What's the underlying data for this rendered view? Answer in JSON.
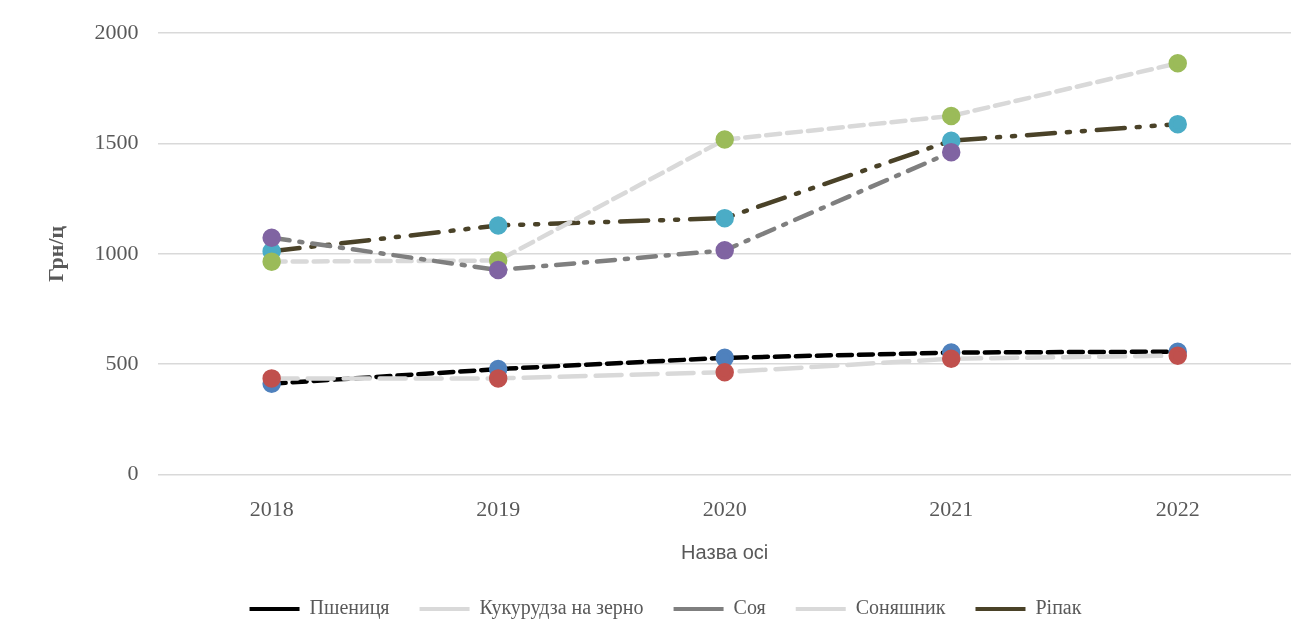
{
  "chart_data": {
    "type": "line",
    "xlabel": "Назва осі",
    "ylabel": "Грн/ц",
    "categories": [
      "2018",
      "2019",
      "2020",
      "2021",
      "2022"
    ],
    "ylim": [
      0,
      2000
    ],
    "yticks": [
      0,
      500,
      1000,
      1500,
      2000
    ],
    "grid": "y",
    "legend": "bottom",
    "marker": "circle",
    "series": [
      {
        "name": "Пшениця",
        "color": "#4f81bd",
        "line_style": "dashed",
        "values": [
          412,
          478,
          529,
          553,
          557
        ]
      },
      {
        "name": "Кукурудза на зерно",
        "color": "#c0504d",
        "line_style": "long_dash",
        "values": [
          436,
          436,
          464,
          525,
          539
        ]
      },
      {
        "name": "Соя",
        "color": "#8064a2",
        "line_style": "dash_dot",
        "values": [
          1073,
          927,
          1016,
          1461,
          null
        ]
      },
      {
        "name": "Соняшник",
        "color": "#9bbb59",
        "line_style": "dashed",
        "values": [
          965,
          970,
          1518,
          1625,
          1864
        ]
      },
      {
        "name": "Ріпак",
        "color": "#4bacc6",
        "line_style": "long_dash_dot",
        "values": [
          1012,
          1129,
          1162,
          1513,
          1588
        ]
      }
    ]
  }
}
